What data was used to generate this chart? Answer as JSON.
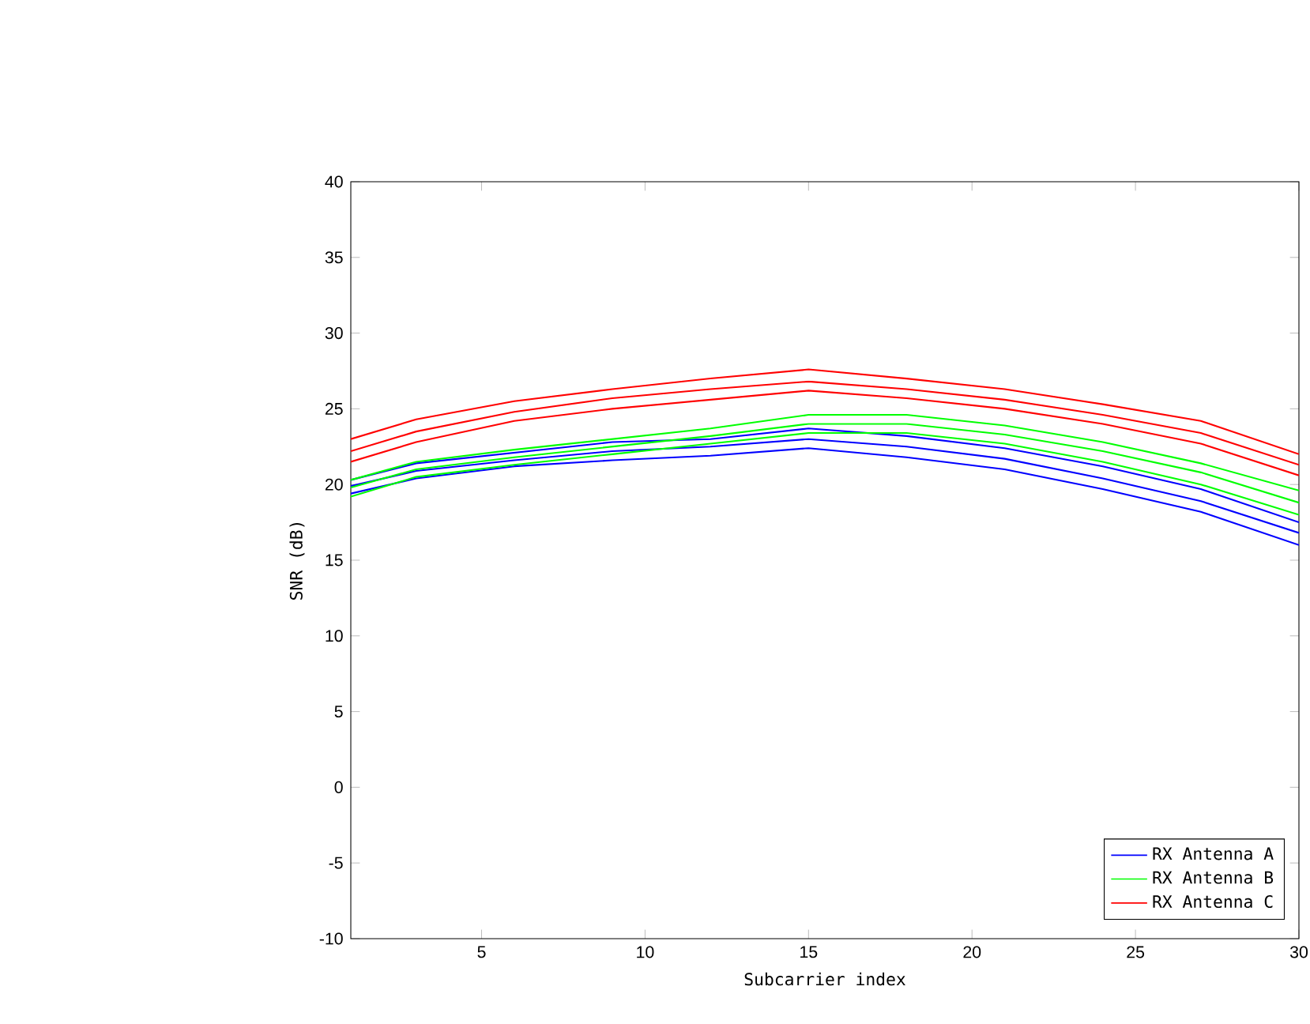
{
  "chart_data": {
    "type": "line",
    "xlabel": "Subcarrier index",
    "ylabel": "SNR (dB)",
    "x": [
      1,
      3,
      6,
      9,
      12,
      15,
      18,
      21,
      24,
      27,
      30
    ],
    "xlim": [
      1,
      30
    ],
    "xticks": [
      5,
      10,
      15,
      20,
      25,
      30
    ],
    "ylim": [
      -10,
      40
    ],
    "yticks": [
      -10,
      -5,
      0,
      5,
      10,
      15,
      20,
      25,
      30,
      35,
      40
    ],
    "legend": "bottom right",
    "grid": false,
    "marker": "none",
    "line_style": "solid",
    "series": [
      {
        "name": "RX Antenna A",
        "color": "#0000ff",
        "values": [
          20.3,
          21.4,
          22.1,
          22.8,
          23,
          23.7,
          23.2,
          22.4,
          21.2,
          19.7,
          17.5
        ]
      },
      {
        "color": "#0000ff",
        "values": [
          19.9,
          20.9,
          21.6,
          22.2,
          22.5,
          23,
          22.5,
          21.7,
          20.4,
          18.9,
          16.8
        ]
      },
      {
        "color": "#0000ff",
        "values": [
          19.4,
          20.4,
          21.2,
          21.6,
          21.9,
          22.4,
          21.8,
          21,
          19.7,
          18.2,
          16
        ]
      },
      {
        "name": "RX Antenna B",
        "color": "#00ff00",
        "values": [
          20.3,
          21.5,
          22.3,
          23,
          23.7,
          24.6,
          24.6,
          23.9,
          22.8,
          21.4,
          19.6
        ]
      },
      {
        "color": "#00ff00",
        "values": [
          19.8,
          21,
          21.8,
          22.5,
          23.2,
          24,
          24,
          23.3,
          22.2,
          20.8,
          18.8
        ]
      },
      {
        "color": "#00ff00",
        "values": [
          19.2,
          20.5,
          21.3,
          22,
          22.7,
          23.4,
          23.4,
          22.7,
          21.5,
          20,
          18
        ]
      },
      {
        "name": "RX Antenna C",
        "color": "#ff0000",
        "values": [
          23,
          24.3,
          25.5,
          26.3,
          27,
          27.6,
          27,
          26.3,
          25.3,
          24.2,
          22
        ]
      },
      {
        "color": "#ff0000",
        "values": [
          22.2,
          23.5,
          24.8,
          25.7,
          26.3,
          26.8,
          26.3,
          25.6,
          24.6,
          23.4,
          21.3
        ]
      },
      {
        "color": "#ff0000",
        "values": [
          21.5,
          22.8,
          24.2,
          25,
          25.6,
          26.2,
          25.7,
          25,
          24,
          22.7,
          20.6
        ]
      }
    ]
  }
}
